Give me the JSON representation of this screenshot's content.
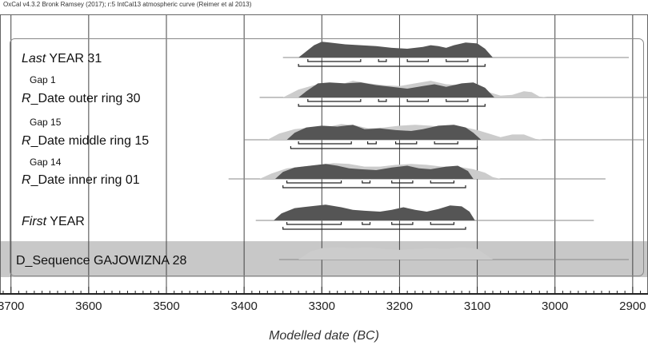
{
  "header": "OxCal v4.3.2 Bronk Ramsey (2017); r:5 IntCal13 atmospheric curve (Reimer et al 2013)",
  "colors": {
    "posterior": "#555555",
    "prior": "#cccccc",
    "sequence_band": "#c8c8c8",
    "grid": "#444444"
  },
  "chart_data": {
    "type": "area",
    "title": "",
    "xlabel": "Modelled date (BC)",
    "ylabel": "",
    "xlim": [
      3710,
      2870
    ],
    "x_axis_reversed": true,
    "x_ticks": [
      3700,
      3600,
      3500,
      3400,
      3300,
      3200,
      3100,
      3000,
      2900
    ],
    "grid": true,
    "rows": [
      {
        "prefix": "Last",
        "label": " YEAR 31",
        "kind": "boundary",
        "whisker": [
          3350,
          2905
        ],
        "posterior": [
          [
            3330,
            0
          ],
          [
            3320,
            0.35
          ],
          [
            3310,
            0.7
          ],
          [
            3300,
            0.9
          ],
          [
            3290,
            0.85
          ],
          [
            3270,
            0.75
          ],
          [
            3250,
            0.7
          ],
          [
            3230,
            0.65
          ],
          [
            3210,
            0.55
          ],
          [
            3190,
            0.5
          ],
          [
            3170,
            0.6
          ],
          [
            3160,
            0.7
          ],
          [
            3150,
            0.65
          ],
          [
            3140,
            0.55
          ],
          [
            3130,
            0.7
          ],
          [
            3115,
            0.85
          ],
          [
            3100,
            0.8
          ],
          [
            3090,
            0.5
          ],
          [
            3080,
            0
          ]
        ],
        "prior": [],
        "range_68": [
          [
            3318,
            3250
          ],
          [
            3227,
            3217
          ],
          [
            3190,
            3163
          ],
          [
            3140,
            3112
          ]
        ],
        "range_95": [
          [
            3330,
            3090
          ]
        ]
      },
      {
        "gap": "Gap 1",
        "prefix": "R",
        "label": "_Date outer ring 30",
        "kind": "date",
        "whisker": [
          3380,
          2875
        ],
        "posterior": [
          [
            3330,
            0
          ],
          [
            3320,
            0.35
          ],
          [
            3305,
            0.8
          ],
          [
            3290,
            0.85
          ],
          [
            3270,
            0.8
          ],
          [
            3250,
            0.85
          ],
          [
            3230,
            0.7
          ],
          [
            3210,
            0.6
          ],
          [
            3190,
            0.5
          ],
          [
            3170,
            0.65
          ],
          [
            3155,
            0.75
          ],
          [
            3140,
            0.6
          ],
          [
            3120,
            0.8
          ],
          [
            3105,
            0.85
          ],
          [
            3090,
            0.55
          ],
          [
            3078,
            0
          ]
        ],
        "prior": [
          [
            3350,
            0
          ],
          [
            3330,
            0.45
          ],
          [
            3310,
            0.7
          ],
          [
            3295,
            0.65
          ],
          [
            3275,
            0.75
          ],
          [
            3260,
            0.95
          ],
          [
            3240,
            0.8
          ],
          [
            3220,
            0.7
          ],
          [
            3200,
            0.65
          ],
          [
            3180,
            0.8
          ],
          [
            3160,
            0.95
          ],
          [
            3140,
            0.75
          ],
          [
            3120,
            0.7
          ],
          [
            3100,
            0.55
          ],
          [
            3085,
            0.3
          ],
          [
            3070,
            0.1
          ],
          [
            3055,
            0.15
          ],
          [
            3040,
            0.35
          ],
          [
            3030,
            0.3
          ],
          [
            3020,
            0.05
          ],
          [
            3010,
            0
          ]
        ],
        "range_68": [
          [
            3318,
            3250
          ],
          [
            3227,
            3217
          ],
          [
            3190,
            3163
          ],
          [
            3140,
            3112
          ]
        ],
        "range_95": [
          [
            3330,
            3090
          ]
        ]
      },
      {
        "gap": "Gap 15",
        "prefix": "R",
        "label": "_Date middle ring 15",
        "kind": "date",
        "whisker": [
          3400,
          2885
        ],
        "posterior": [
          [
            3345,
            0
          ],
          [
            3335,
            0.4
          ],
          [
            3320,
            0.7
          ],
          [
            3300,
            0.8
          ],
          [
            3280,
            0.75
          ],
          [
            3260,
            0.85
          ],
          [
            3245,
            0.6
          ],
          [
            3225,
            0.65
          ],
          [
            3205,
            0.55
          ],
          [
            3185,
            0.5
          ],
          [
            3170,
            0.6
          ],
          [
            3150,
            0.8
          ],
          [
            3130,
            0.85
          ],
          [
            3115,
            0.7
          ],
          [
            3105,
            0.4
          ],
          [
            3095,
            0
          ]
        ],
        "prior": [
          [
            3370,
            0
          ],
          [
            3355,
            0.35
          ],
          [
            3335,
            0.6
          ],
          [
            3315,
            0.7
          ],
          [
            3290,
            0.75
          ],
          [
            3275,
            0.9
          ],
          [
            3255,
            0.8
          ],
          [
            3240,
            0.65
          ],
          [
            3220,
            0.7
          ],
          [
            3200,
            0.8
          ],
          [
            3180,
            0.85
          ],
          [
            3160,
            0.8
          ],
          [
            3140,
            0.7
          ],
          [
            3120,
            0.75
          ],
          [
            3100,
            0.55
          ],
          [
            3085,
            0.35
          ],
          [
            3070,
            0.15
          ],
          [
            3055,
            0.3
          ],
          [
            3040,
            0.3
          ],
          [
            3025,
            0.05
          ],
          [
            3015,
            0
          ]
        ],
        "range_68": [
          [
            3330,
            3262
          ],
          [
            3241,
            3230
          ],
          [
            3205,
            3178
          ],
          [
            3155,
            3125
          ]
        ],
        "range_95": [
          [
            3340,
            3100
          ]
        ]
      },
      {
        "gap": "Gap 14",
        "prefix": "R",
        "label": "_Date inner ring 01",
        "kind": "date",
        "whisker": [
          3420,
          2935
        ],
        "posterior": [
          [
            3360,
            0
          ],
          [
            3350,
            0.4
          ],
          [
            3335,
            0.65
          ],
          [
            3315,
            0.75
          ],
          [
            3295,
            0.85
          ],
          [
            3280,
            0.75
          ],
          [
            3265,
            0.6
          ],
          [
            3250,
            0.55
          ],
          [
            3230,
            0.5
          ],
          [
            3210,
            0.65
          ],
          [
            3190,
            0.75
          ],
          [
            3175,
            0.6
          ],
          [
            3160,
            0.55
          ],
          [
            3140,
            0.7
          ],
          [
            3125,
            0.75
          ],
          [
            3112,
            0.45
          ],
          [
            3105,
            0
          ]
        ],
        "prior": [
          [
            3380,
            0
          ],
          [
            3365,
            0.3
          ],
          [
            3345,
            0.6
          ],
          [
            3325,
            0.7
          ],
          [
            3305,
            0.8
          ],
          [
            3285,
            0.9
          ],
          [
            3265,
            0.85
          ],
          [
            3245,
            0.7
          ],
          [
            3225,
            0.7
          ],
          [
            3205,
            0.8
          ],
          [
            3185,
            0.85
          ],
          [
            3165,
            0.8
          ],
          [
            3145,
            0.7
          ],
          [
            3125,
            0.7
          ],
          [
            3105,
            0.55
          ],
          [
            3090,
            0.35
          ],
          [
            3080,
            0.1
          ],
          [
            3070,
            0
          ]
        ],
        "range_68": [
          [
            3345,
            3275
          ],
          [
            3248,
            3238
          ],
          [
            3210,
            3183
          ],
          [
            3160,
            3130
          ]
        ],
        "range_95": [
          [
            3350,
            3115
          ]
        ]
      },
      {
        "prefix": "First",
        "label": " YEAR",
        "kind": "boundary",
        "whisker": [
          3385,
          2950
        ],
        "posterior": [
          [
            3362,
            0
          ],
          [
            3352,
            0.4
          ],
          [
            3335,
            0.7
          ],
          [
            3315,
            0.8
          ],
          [
            3295,
            0.9
          ],
          [
            3275,
            0.75
          ],
          [
            3260,
            0.6
          ],
          [
            3245,
            0.55
          ],
          [
            3225,
            0.5
          ],
          [
            3210,
            0.6
          ],
          [
            3195,
            0.75
          ],
          [
            3180,
            0.6
          ],
          [
            3165,
            0.5
          ],
          [
            3150,
            0.65
          ],
          [
            3135,
            0.85
          ],
          [
            3120,
            0.8
          ],
          [
            3110,
            0.5
          ],
          [
            3103,
            0
          ]
        ],
        "prior": [],
        "range_68": [
          [
            3345,
            3275
          ],
          [
            3248,
            3238
          ],
          [
            3210,
            3183
          ],
          [
            3160,
            3130
          ]
        ],
        "range_95": [
          [
            3350,
            3115
          ]
        ]
      },
      {
        "label": "D_Sequence GAJOWIZNA 28",
        "kind": "sequence",
        "whisker": [
          3355,
          2905
        ],
        "posterior": [],
        "prior": [
          [
            3330,
            0
          ],
          [
            3315,
            0.45
          ],
          [
            3300,
            0.65
          ],
          [
            3280,
            0.7
          ],
          [
            3260,
            0.65
          ],
          [
            3240,
            0.7
          ],
          [
            3220,
            0.6
          ],
          [
            3200,
            0.55
          ],
          [
            3180,
            0.6
          ],
          [
            3160,
            0.65
          ],
          [
            3140,
            0.6
          ],
          [
            3120,
            0.7
          ],
          [
            3100,
            0.6
          ],
          [
            3090,
            0.3
          ],
          [
            3080,
            0
          ]
        ],
        "range_68": [],
        "range_95": []
      }
    ]
  }
}
